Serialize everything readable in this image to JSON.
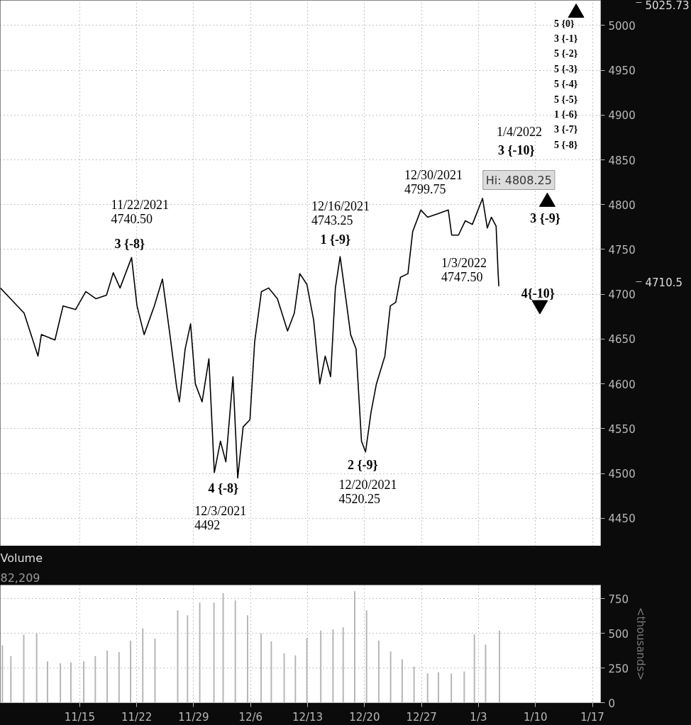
{
  "chart_data": [
    {
      "type": "line",
      "xlim": [
        "2021-11-05T06:00",
        "2022-01-18T00:00"
      ],
      "ylim": [
        4419,
        5028
      ],
      "xticks": [
        "2021-11-15",
        "2021-11-22",
        "2021-11-29",
        "2021-12-06",
        "2021-12-13",
        "2021-12-20",
        "2021-12-27",
        "2022-01-03",
        "2022-01-10",
        "2022-01-17"
      ],
      "yticks": [
        4450,
        4500,
        4550,
        4600,
        4650,
        4700,
        4750,
        4800,
        4850,
        4900,
        4950,
        5000
      ],
      "tick_labels": "y",
      "grid": true,
      "line_style": "solid",
      "series": [
        {
          "type": "line",
          "color": "#000000",
          "x": [
            "2021-11-05T06:00",
            "2021-11-06T12:00",
            "2021-11-08T04:00",
            "2021-11-09T21:00",
            "2021-11-10T07:00",
            "2021-11-11T23:00",
            "2021-11-12T23:00",
            "2021-11-14T12:00",
            "2021-11-15T18:00",
            "2021-11-17T00:00",
            "2021-11-18T07:00",
            "2021-11-19T03:00",
            "2021-11-19T23:00",
            "2021-11-21T09:00",
            "2021-11-22T01:00",
            "2021-11-22T22:00",
            "2021-11-24T04:00",
            "2021-11-25T04:00",
            "2021-11-26T02:00",
            "2021-11-26T22:00",
            "2021-11-27T06:00",
            "2021-11-27T23:00",
            "2021-11-28T15:00",
            "2021-11-29T05:00",
            "2021-11-30T01:00",
            "2021-11-30T21:00",
            "2021-12-01T13:00",
            "2021-12-02T07:00",
            "2021-12-02T23:00",
            "2021-12-03T20:00",
            "2021-12-04T10:00",
            "2021-12-05T02:00",
            "2021-12-05T22:00",
            "2021-12-06T12:00",
            "2021-12-07T08:00",
            "2021-12-08T05:00",
            "2021-12-09T07:00",
            "2021-12-10T13:00",
            "2021-12-11T09:00",
            "2021-12-12T01:00",
            "2021-12-12T22:00",
            "2021-12-13T18:00",
            "2021-12-14T12:00",
            "2021-12-15T04:00",
            "2021-12-15T20:00",
            "2021-12-16T10:00",
            "2021-12-17T00:00",
            "2021-12-17T17:00",
            "2021-12-18T07:00",
            "2021-12-18T23:00",
            "2021-12-19T15:00",
            "2021-12-20T03:00",
            "2021-12-20T19:00",
            "2021-12-21T11:00",
            "2021-12-22T12:00",
            "2021-12-23T04:00",
            "2021-12-23T20:00",
            "2021-12-24T10:00",
            "2021-12-25T08:00",
            "2021-12-25T22:00",
            "2021-12-26T22:00",
            "2021-12-27T18:00",
            "2021-12-29T01:00",
            "2021-12-30T07:00",
            "2021-12-30T17:00",
            "2021-12-31T13:00",
            "2022-01-01T09:00",
            "2022-01-02T06:00",
            "2022-01-03T12:00",
            "2022-01-04T02:00",
            "2022-01-04T14:00",
            "2022-01-05T04:00",
            "2022-01-05T10:00",
            "2022-01-05T12:00"
          ],
          "values": [
            4707,
            4695,
            4679,
            4631,
            4655,
            4649,
            4687,
            4683,
            4703,
            4695,
            4699,
            4724,
            4707,
            4741,
            4687,
            4655,
            4687,
            4717,
            4655,
            4596,
            4580,
            4639,
            4667,
            4600,
            4580,
            4628,
            4501,
            4536,
            4513,
            4608,
            4495,
            4552,
            4560,
            4647,
            4703,
            4707,
            4695,
            4659,
            4679,
            4723,
            4711,
            4671,
            4600,
            4631,
            4608,
            4707,
            4742,
            4695,
            4655,
            4639,
            4536,
            4524,
            4568,
            4600,
            4631,
            4687,
            4691,
            4719,
            4723,
            4770,
            4794,
            4786,
            4790,
            4794,
            4766,
            4766,
            4782,
            4778,
            4807,
            4774,
            4786,
            4776,
            4723,
            4709
          ]
        },
        {
          "type": "scatter",
          "marker": "triangle",
          "color": "#000000",
          "x": [
            "2022-01-15T00:00",
            "2022-01-11T11:00"
          ],
          "values": [
            5014,
            4803
          ]
        },
        {
          "type": "scatter",
          "color": "#000000",
          "x": [
            "2022-01-10T13:00"
          ],
          "values": [
            4688
          ]
        }
      ],
      "annotations": [
        "11/22/2021",
        "4740.50",
        "3 {-8}",
        "4 {-8}",
        "12/3/2021",
        "4492",
        "12/16/2021",
        "4743.25",
        "1 {-9}",
        "2 {-9}",
        "12/20/2021",
        "4520.25",
        "12/30/2021",
        "4799.75",
        "1/3/2022",
        "4747.50",
        "1/4/2022",
        "3 {-10}",
        "3 {-9}",
        "4{-10}",
        "5 {0}",
        "3 {-1}",
        "5 {-2}",
        "5 {-3}",
        "5 {-4}",
        "5 {-5}",
        "1 {-6}",
        "3 {-7}",
        "5 {-8}",
        "Hi: 4808.25",
        "5025.73",
        "4710.5"
      ]
    },
    {
      "type": "bar",
      "title": "Volume",
      "subtitle": "82,209",
      "ylabel": "<thousands>",
      "xlim": [
        "2021-11-05T06:00",
        "2022-01-18T00:00"
      ],
      "ylim": [
        0,
        847
      ],
      "xticks": [
        {
          "value": "2021-11-15",
          "label": "11/15"
        },
        {
          "value": "2021-11-22",
          "label": "11/22"
        },
        {
          "value": "2021-11-29",
          "label": "11/29"
        },
        {
          "value": "2021-12-06",
          "label": "12/6"
        },
        {
          "value": "2021-12-13",
          "label": "12/13"
        },
        {
          "value": "2021-12-20",
          "label": "12/20"
        },
        {
          "value": "2021-12-27",
          "label": "12/27"
        },
        {
          "value": "2022-01-03",
          "label": "1/3"
        },
        {
          "value": "2022-01-10",
          "label": "1/10"
        },
        {
          "value": "2022-01-17",
          "label": "1/17"
        }
      ],
      "yticks": [
        0,
        250,
        500,
        750
      ],
      "grid": true,
      "series": [
        {
          "color": "#b4b4b4",
          "x": [
            "2021-11-05T12:00",
            "2021-11-06T13:00",
            "2021-11-08T03:00",
            "2021-11-09T17:00",
            "2021-11-11T01:00",
            "2021-11-12T15:00",
            "2021-11-13T22:00",
            "2021-11-15T12:00",
            "2021-11-16T22:00",
            "2021-11-18T09:00",
            "2021-11-19T20:00",
            "2021-11-21T06:00",
            "2021-11-22T18:00",
            "2021-11-24T06:00",
            "2021-11-27T01:00",
            "2021-11-28T06:00",
            "2021-11-29T18:00",
            "2021-12-01T12:00",
            "2021-12-02T15:00",
            "2021-12-04T03:00",
            "2021-12-05T15:00",
            "2021-12-07T07:00",
            "2021-12-08T13:00",
            "2021-12-10T03:00",
            "2021-12-11T12:00",
            "2021-12-12T22:00",
            "2021-12-14T15:00",
            "2021-12-16T03:00",
            "2021-12-17T09:00",
            "2021-12-18T19:00",
            "2021-12-20T06:00",
            "2021-12-21T18:00",
            "2021-12-23T05:00",
            "2021-12-24T15:00",
            "2021-12-26T02:00",
            "2021-12-27T18:00",
            "2021-12-29T02:00",
            "2021-12-30T16:00",
            "2022-01-01T06:00",
            "2022-01-02T12:00",
            "2022-01-03T21:00",
            "2022-01-05T14:00"
          ],
          "values": [
            413,
            335,
            490,
            499,
            297,
            283,
            291,
            297,
            335,
            375,
            364,
            447,
            534,
            462,
            664,
            629,
            721,
            721,
            788,
            736,
            629,
            499,
            441,
            355,
            340,
            465,
            519,
            528,
            542,
            802,
            664,
            447,
            369,
            312,
            260,
            211,
            219,
            211,
            225,
            493,
            418,
            519
          ]
        }
      ]
    }
  ]
}
